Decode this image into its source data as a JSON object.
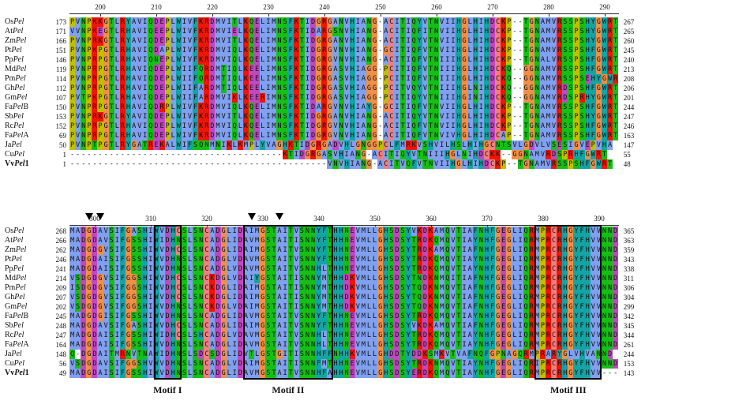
{
  "blocks": [
    {
      "ticks": [
        "200",
        "210",
        "220",
        "230",
        "240",
        "250",
        "260",
        "270",
        "280",
        "290"
      ],
      "rows": [
        {
          "name": "OsPel",
          "start": "173",
          "seq": "PVNPKKGTLRYAVIQDEPLWIVFKRDMVITLKQELIMNSFKTIDGRGANVHIANG-ACITIQYVTNVIIHGLHIHDCKP--TGNAMVRSSPSHYGWRT",
          "end": "267"
        },
        {
          "name": "AtPel",
          "start": "171",
          "seq": "VVNPKEGTLRHAVIQEEPLWIVFKRDMVIELKQELIMNSFKTIDARGSNVHIANG-ACITIQFITNVIIHGLHIHDCKP--TGNAMVRSSPSHYGWRT",
          "end": "265"
        },
        {
          "name": "ZmPel",
          "start": "166",
          "seq": "PVNPRKGTLRYAVIQDEPLWIVFKRDMVITLKQELIMNSFKTIDGRGANVHIANG-ACITIQYVTNVIIHGLHIHDCKP--TGNAMVRSSPSHYGWRT",
          "end": "260"
        },
        {
          "name": "PtPel",
          "start": "151",
          "seq": "PVNPKPGTLRHAVIQDAPLWIVFKRDMVIQLKQELIMNSFKTIDGRGVNVHIANG-GCITIQFVTNVIIHGLHIHDCKP--TGNAMVRSSPSHFGWRT",
          "end": "245"
        },
        {
          "name": "PpPel",
          "start": "146",
          "seq": "PVNPRPGTLRHAVIQNEPLWIVFKRDMVIQLKQELIMNSFKTIDGRGVNVHIANG-ACITIQFVTNIIIHGLHIHDCKP--TGNALVRSSPSHFGWRT",
          "end": "240"
        },
        {
          "name": "MdPel",
          "start": "119",
          "seq": "PVNPRPGTLRHAVIQDEPLWIIFQRDMTIQLKEELIMNSFKTIDGRGASVHIAGG-PCITIQFVTNIIIHGLHIHDCKQ--GGNAMVRSSPSHFGWRT",
          "end": "213"
        },
        {
          "name": "PmPel",
          "start": "114",
          "seq": "PVNPRPGTLRHAVIQDEPLWIIFQRDMTIQLKEELIMNSFKTIDGRGASVHIAGG-PCITIQFVTNIIIHGLHIHDCKQ--GGNAMVRSSPSEHYGWRT",
          "end": "208"
        },
        {
          "name": "GhPel",
          "start": "112",
          "seq": "PVNPRPGTLRHAVIQDEPLWIIFARDMTIQLKEELIMNSFKTIDGRGASVHIAGG-PCITVQYVTNIIIHGLNIHDCKQ--GGNAMVRDSPSHFGWRT",
          "end": "206"
        },
        {
          "name": "GmPel",
          "start": "107",
          "seq": "PVTPKPGTLRHAVIQDEPLWIIFARDMVIKLKEERIMNSFKTIDGRGASVHIAGG-PCITIQYVTNIIIHGINIHDCKQ--GGNAMVRDSPRHYGWRT",
          "end": "201"
        },
        {
          "name": "FaPelB",
          "start": "150",
          "seq": "PVNPRPGTLRHAVIQDRPLWIVFKRDMVIQLKQELIMNSFKTIDARGVNVHIAYG-GCITIQFVTNVIIHGLHIHDCKP--TGNAMVRSSPSHFGWRT",
          "end": "244"
        },
        {
          "name": "SbPel",
          "start": "153",
          "seq": "PVNPRKGTLRYAVIQDEPLWIVFKRDMVITLKQELIMNSFKTIDGRGANVHIANG-ACITIQYVTNVIIHGLHIHDCKP--TGNAMVRSSPSHYGWRT",
          "end": "247"
        },
        {
          "name": "RcPel",
          "start": "152",
          "seq": "PVNPRPGTLRHAVIQDEPLWIVFKRDMVIQLKQELIMNSFKTIDGRGVNVHIANG-ACITIQFVTNVIIHGLHIHDCKP--TGNAMVRSSPSHFGWRT",
          "end": "246"
        },
        {
          "name": "FaPelA",
          "start": "69",
          "seq": "PVNPRPGTLRHAVIQDEPLWIVFKRDMVIQLKQELIMNSFKTIDGRGVNVHIANG-ACITIQFVTNVIVHGLHIHDCAP--TGNAMVRSSPSHFGWRT",
          "end": "163"
        },
        {
          "name": "JaPel",
          "start": "50",
          "seq": "PVNPTPGTLRYGATREKALWIFSQNMNIKLKMPLYVAGHKTIDGRGADVHLGNGGPCLFMRKVSHVILHSLHIHGCNTSVLGDVLVSESIGVEPVHA",
          "end": "147"
        },
        {
          "name": "CuPel",
          "start": "1",
          "seq": "--------------------------------------KTIDGRGASVHIANG-ACITIQYVTNIIIHGLNIHDCKK--GGNAMVRDSPRHFGWRT",
          "end": "55"
        },
        {
          "name": "VvPel1",
          "start": "1",
          "seq": "----------------------------------------------VNVHIANG-ACITVQFVTNVIIHGLHIHDCKP--TGNAMVRSSPSHFGWRT",
          "end": "48",
          "bold": true
        }
      ]
    },
    {
      "ticks": [
        "300",
        "310",
        "320",
        "330",
        "340",
        "350",
        "360",
        "370",
        "380",
        "390"
      ],
      "rows": [
        {
          "name": "OsPel",
          "start": "268",
          "seq": "MADGDAVSIFGASHIWVDHCSLSNCADGLIDAIMGSTAITVSNNYFTHHNEVMLLGHSDSYVKDKAMQVTIAFNHFGEGLIQRMPRCRHGYFHVVNND",
          "end": "365"
        },
        {
          "name": "AtPel",
          "start": "266",
          "seq": "MADGDAVSIFGSSHIWIDHNSLSNCADGLIDAVMGSTAITISNNYFTHHNEVMLLGHSDSYTRDKQMQVTIAYNHFGEGLIQRMPRCRHGYFHVVNND",
          "end": "363"
        },
        {
          "name": "ZmPel",
          "start": "262",
          "seq": "MADGDGVSIFGSSHIWVDHCSLSNCADGLIDAIMGSTAITVSNNYFTHHNEVMLLGHSDSYTRDKAMQVTIAFNHFGEGLIQRMPRCRHGYFHVVNND",
          "end": "359"
        },
        {
          "name": "PtPel",
          "start": "246",
          "seq": "MADGDAISIFGSSHIWVDHNSLSNCADGLVDAVMGSTAITVSNNYFTHHNEVMLLGHSDSYTRDKQMQVTIAYNHFGEGLIQRMPRCRHGYFHVVNND",
          "end": "343"
        },
        {
          "name": "PpPel",
          "start": "241",
          "seq": "MADGDAISIFGSSHIWVDHNSLSNCADGLVDAVMGSTAITVSNNHLTHHNEVMLLGHSDSYTRDKQMQVTIAYNHFGEGLIQRMPRCRHGYFHVVNND",
          "end": "338"
        },
        {
          "name": "MdPel",
          "start": "214",
          "seq": "VSDGDGVSIFGGSHIWVDHCSLSNCKDGLVDAIYGSTAITISNNYMTHHDKVMLLGHSDSYTNDKNMQITIAFNHFGEGLIQRMPRCRHGYFHVVNND",
          "end": "311"
        },
        {
          "name": "PmPel",
          "start": "209",
          "seq": "ISDGDGVSIFGGSHIWVDHCSLSNCKDGLIDAIMGSTAITISNNYMTHHDKVMLLGHSDSYTQDKNMQVTIAFNHFGEGLIQRMPRCRHGYFHVVNND",
          "end": "306"
        },
        {
          "name": "GhPel",
          "start": "207",
          "seq": "VSDGDGVSIFGGSHIWVDHCSLSNCKDGLIDAIMGSTAITISNNYMTHHDKVMLLGHSDSYTQDKNMQVTIAFNHFGEGLIQRMPRCRHGYFHVVNND",
          "end": "304"
        },
        {
          "name": "GmPel",
          "start": "202",
          "seq": "VSDGDGVSIFGGSHIWVDHNSLSNCKDGLVDAIMGSTAITISNNYMTHHDKVMLLGHSDSYTQDKNMQVTIAFNHFGEGLIQRMPRCRHGYFHVVNND",
          "end": "299"
        },
        {
          "name": "FaPelB",
          "start": "245",
          "seq": "MADGDGISIFGSSHIWVDHNSLSNCADGLIDAVMGSTAITVSNNYFTHHNEVMLLGHSDSYTRDKQMQVTIAYNHFGEGLIQRMPRCRHGYFHVVNND",
          "end": "342"
        },
        {
          "name": "SbPel",
          "start": "248",
          "seq": "MADGDAVSIFGASHIWVDHCSLSNCADGLIDAIMGSTAITVSNNYFTHHNEVMLLGHSDSYVKDKAMQVTIAFNHFGEGLIQRMPRCRHGYFHVVNND",
          "end": "345"
        },
        {
          "name": "RcPel",
          "start": "247",
          "seq": "MADGDAISIFGSSHIWIDHCSLSHCADGLVDAVMGSTAITVSNNHLTHHNEVMLLGHSDSYTRDKQMQVTIAYNHFGEGLIQRMPRCRHGYFHVVNND",
          "end": "344"
        },
        {
          "name": "FaPelA",
          "start": "164",
          "seq": "MADGDAISIFGSSHIWVDHNSLSNCADGLIDAVMGSTAITVSNNHLTHHNEVMLLGHSDSYTRDKQMQVTIAYNHFGEGLIQRMPRCRHGYFHVVNND",
          "end": "261"
        },
        {
          "name": "JaPel",
          "start": "148",
          "seq": "Q-DGDAITMRNVTNAWIDHNSLSDCSDGLIDVTLGSTGITISNNHFFNHHKVMLLGHDDTYDDKSMKVTVAFNQFGPNAGQRMPRARYGLVHVANND",
          "end": "244"
        },
        {
          "name": "CuPel",
          "start": "56",
          "seq": "VSDGDAVSIFGGSHVWVDHNSLSNCADGLVDAIMGSTAITISNNFMTHHNEVMLLGHSDSYTRDKNMQVTIAYNHFGEGLIQRIPRCRHGYFHVVNND",
          "end": "153"
        },
        {
          "name": "VvPel1",
          "start": "49",
          "seq": "MADGDAISIFGSSHIWVDHNSLSNCADGLIDAVMGSTAITVSNNHFAHHNEVMLLGHSDSYERDKQMQVTIAYNHFGEGLIQRMPRCRHGYFHVV---",
          "end": "143",
          "bold": true
        }
      ]
    }
  ],
  "motifs": [
    "Motif I",
    "Motif II",
    "Motif III"
  ],
  "colors": {
    "hydrophobic": "#80a0f0",
    "positive": "#f01505",
    "negative": "#c048c0",
    "polar": "#15c015",
    "cysteine": "#f08080",
    "glycine": "#f09048",
    "proline": "#c0c000",
    "aromatic": "#15a4a4",
    "gap": "#ffffff"
  }
}
